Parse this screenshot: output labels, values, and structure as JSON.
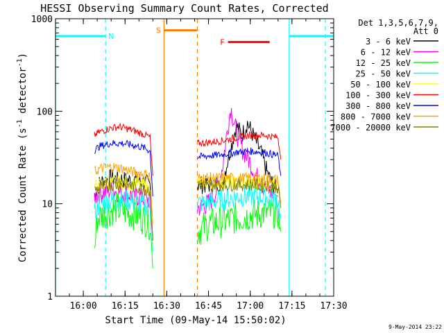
{
  "chart_data": {
    "type": "line",
    "title": "HESSI Observing Summary Count Rates, Corrected",
    "xlabel": "Start Time (09-May-14 15:50:02)",
    "ylabel_main": "Corrected Count Rate (s",
    "ylabel_sup1": "-1",
    "ylabel_mid": " detector",
    "ylabel_sup2": "-1",
    "ylabel_end": ")",
    "yscale": "log",
    "ylim": [
      1,
      1000
    ],
    "xlim": [
      "15:50",
      "17:30"
    ],
    "x_ticks": [
      "16:00",
      "16:15",
      "16:30",
      "16:45",
      "17:00",
      "17:15",
      "17:30"
    ],
    "y_ticks": [
      "1",
      "10",
      "100",
      "1000"
    ],
    "legend_title_1": "Det 1,3,5,6,7,9,",
    "legend_title_2": "Att 0",
    "footer_date": "9-May-2014 23:22",
    "series": [
      {
        "name": "3 - 6 keV",
        "color": "#000000",
        "segments": [
          {
            "points": [
              [
                "16:04",
                12
              ],
              [
                "16:06",
                17
              ],
              [
                "16:10",
                19
              ],
              [
                "16:15",
                18
              ],
              [
                "16:20",
                18
              ],
              [
                "16:24",
                16
              ],
              [
                "16:25",
                4
              ]
            ]
          },
          {
            "points": [
              [
                "16:41",
                16
              ],
              [
                "16:45",
                16
              ],
              [
                "16:50",
                17
              ],
              [
                "16:53",
                40
              ],
              [
                "16:55",
                70
              ],
              [
                "16:57",
                55
              ],
              [
                "16:59",
                75
              ],
              [
                "17:01",
                55
              ],
              [
                "17:04",
                35
              ],
              [
                "17:06",
                22
              ],
              [
                "17:08",
                16
              ],
              [
                "17:10",
                14
              ]
            ]
          }
        ]
      },
      {
        "name": "6 - 12 keV",
        "color": "#ff00ff",
        "segments": [
          {
            "points": [
              [
                "16:04",
                12
              ],
              [
                "16:06",
                13
              ],
              [
                "16:10",
                14
              ],
              [
                "16:15",
                13
              ],
              [
                "16:20",
                12
              ],
              [
                "16:24",
                11
              ],
              [
                "16:25",
                4
              ]
            ]
          },
          {
            "points": [
              [
                "16:41",
                9
              ],
              [
                "16:45",
                10
              ],
              [
                "16:48",
                14
              ],
              [
                "16:50",
                25
              ],
              [
                "16:52",
                70
              ],
              [
                "16:53",
                110
              ],
              [
                "16:55",
                60
              ],
              [
                "16:57",
                40
              ],
              [
                "17:00",
                28
              ],
              [
                "17:02",
                20
              ],
              [
                "17:05",
                15
              ],
              [
                "17:10",
                12
              ]
            ]
          }
        ]
      },
      {
        "name": "12 - 25 keV",
        "color": "#00ff00",
        "segments": [
          {
            "points": [
              [
                "16:04",
                3
              ],
              [
                "16:05",
                7
              ],
              [
                "16:08",
                8
              ],
              [
                "16:12",
                9
              ],
              [
                "16:16",
                8
              ],
              [
                "16:20",
                7.5
              ],
              [
                "16:24",
                6
              ],
              [
                "16:25",
                2
              ]
            ]
          },
          {
            "points": [
              [
                "16:41",
                5
              ],
              [
                "16:45",
                6
              ],
              [
                "16:50",
                6.5
              ],
              [
                "16:55",
                7
              ],
              [
                "17:00",
                7.5
              ],
              [
                "17:05",
                8
              ],
              [
                "17:10",
                8
              ],
              [
                "17:11",
                5
              ]
            ]
          }
        ]
      },
      {
        "name": "25 - 50 keV",
        "color": "#00ffff",
        "segments": [
          {
            "points": [
              [
                "16:04",
                8
              ],
              [
                "16:06",
                10
              ],
              [
                "16:10",
                11
              ],
              [
                "16:15",
                11
              ],
              [
                "16:20",
                10
              ],
              [
                "16:24",
                9.5
              ],
              [
                "16:25",
                3
              ]
            ]
          },
          {
            "points": [
              [
                "16:41",
                10
              ],
              [
                "16:45",
                10.5
              ],
              [
                "16:50",
                11
              ],
              [
                "16:55",
                12
              ],
              [
                "17:00",
                12
              ],
              [
                "17:05",
                12
              ],
              [
                "17:10",
                11
              ],
              [
                "17:11",
                7
              ]
            ]
          }
        ]
      },
      {
        "name": "50 - 100 keV",
        "color": "#ffff00",
        "segments": [
          {
            "points": [
              [
                "16:04",
                15
              ],
              [
                "16:06",
                16
              ],
              [
                "16:10",
                17
              ],
              [
                "16:15",
                17
              ],
              [
                "16:20",
                16
              ],
              [
                "16:24",
                15
              ],
              [
                "16:25",
                4
              ]
            ]
          },
          {
            "points": [
              [
                "16:41",
                17
              ],
              [
                "16:45",
                17
              ],
              [
                "16:50",
                17
              ],
              [
                "16:55",
                17
              ],
              [
                "17:00",
                17
              ],
              [
                "17:05",
                17
              ],
              [
                "17:10",
                16
              ],
              [
                "17:11",
                10
              ]
            ]
          }
        ]
      },
      {
        "name": "100 - 300 keV",
        "color": "#ff0000",
        "segments": [
          {
            "points": [
              [
                "16:04",
                55
              ],
              [
                "16:06",
                60
              ],
              [
                "16:10",
                66
              ],
              [
                "16:13",
                68
              ],
              [
                "16:18",
                62
              ],
              [
                "16:22",
                56
              ],
              [
                "16:24",
                52
              ],
              [
                "16:25",
                20
              ]
            ]
          },
          {
            "points": [
              [
                "16:41",
                45
              ],
              [
                "16:45",
                46
              ],
              [
                "16:50",
                48
              ],
              [
                "16:55",
                52
              ],
              [
                "17:00",
                55
              ],
              [
                "17:05",
                55
              ],
              [
                "17:10",
                52
              ],
              [
                "17:11",
                30
              ]
            ]
          }
        ]
      },
      {
        "name": "300 - 800 keV",
        "color": "#0000ff",
        "segments": [
          {
            "points": [
              [
                "16:04",
                38
              ],
              [
                "16:06",
                42
              ],
              [
                "16:10",
                45
              ],
              [
                "16:14",
                45
              ],
              [
                "16:18",
                43
              ],
              [
                "16:22",
                40
              ],
              [
                "16:24",
                37
              ],
              [
                "16:25",
                12
              ]
            ]
          },
          {
            "points": [
              [
                "16:41",
                32
              ],
              [
                "16:45",
                33
              ],
              [
                "16:50",
                34
              ],
              [
                "16:55",
                36
              ],
              [
                "17:00",
                37
              ],
              [
                "17:05",
                36
              ],
              [
                "17:10",
                33
              ],
              [
                "17:11",
                20
              ]
            ]
          }
        ]
      },
      {
        "name": "800 - 7000 keV",
        "color": "#ffa500",
        "segments": [
          {
            "points": [
              [
                "16:04",
                22
              ],
              [
                "16:06",
                24
              ],
              [
                "16:10",
                25
              ],
              [
                "16:14",
                24
              ],
              [
                "16:18",
                22
              ],
              [
                "16:22",
                21
              ],
              [
                "16:24",
                20
              ],
              [
                "16:25",
                6
              ]
            ]
          },
          {
            "points": [
              [
                "16:41",
                19
              ],
              [
                "16:45",
                19
              ],
              [
                "16:50",
                19
              ],
              [
                "16:55",
                19
              ],
              [
                "17:00",
                19
              ],
              [
                "17:05",
                19
              ],
              [
                "17:10",
                18
              ],
              [
                "17:11",
                10
              ]
            ]
          }
        ]
      },
      {
        "name": "7000 - 20000 keV",
        "color": "#808000",
        "segments": [
          {
            "points": [
              [
                "16:04",
                14
              ],
              [
                "16:06",
                15
              ],
              [
                "16:10",
                16
              ],
              [
                "16:15",
                16
              ],
              [
                "16:20",
                15
              ],
              [
                "16:24",
                14
              ],
              [
                "16:25",
                4
              ]
            ]
          },
          {
            "points": [
              [
                "16:41",
                16
              ],
              [
                "16:45",
                16
              ],
              [
                "16:50",
                16
              ],
              [
                "16:55",
                16
              ],
              [
                "17:00",
                16
              ],
              [
                "17:05",
                16
              ],
              [
                "17:10",
                15
              ],
              [
                "17:11",
                9
              ]
            ]
          }
        ]
      }
    ],
    "flag_bars": [
      {
        "label": "N",
        "color": "#00ffff",
        "y": 650,
        "ranges": [
          [
            "15:50",
            "16:08"
          ],
          [
            "17:14",
            "17:30"
          ]
        ],
        "label_at": "16:10"
      },
      {
        "label": "S",
        "color": "#ff8000",
        "y": 750,
        "ranges": [
          [
            "16:29",
            "16:41"
          ]
        ],
        "label_at": "16:27"
      },
      {
        "label": "F",
        "color": "#ff0000",
        "y": 560,
        "ranges": [
          [
            "16:52",
            "17:07"
          ]
        ],
        "label_at": "16:50"
      }
    ],
    "vertical_markers": [
      {
        "x": "15:50",
        "color": "#00ffff",
        "style": "solid"
      },
      {
        "x": "16:08",
        "color": "#00ffff",
        "style": "dashed"
      },
      {
        "x": "16:29",
        "color": "#ff8000",
        "style": "solid"
      },
      {
        "x": "16:41",
        "color": "#ff8000",
        "style": "dashed"
      },
      {
        "x": "17:14",
        "color": "#00ffff",
        "style": "solid"
      },
      {
        "x": "17:27",
        "color": "#00ffff",
        "style": "dashed"
      }
    ]
  }
}
